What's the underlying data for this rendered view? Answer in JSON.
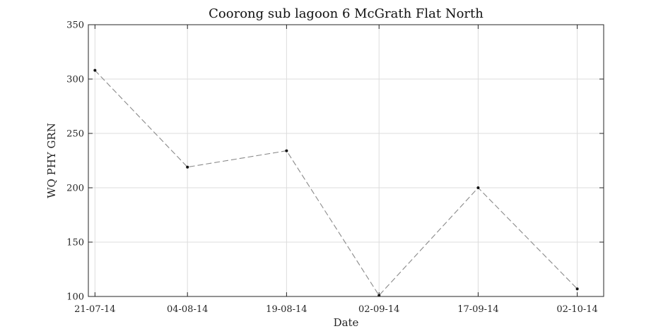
{
  "chart_data": {
    "type": "line",
    "title": "Coorong sub lagoon 6 McGrath Flat North",
    "xlabel": "Date",
    "ylabel": "WQ PHY GRN",
    "x_is_date": true,
    "xlim": [
      "2014-07-20",
      "2014-10-06"
    ],
    "ylim": [
      100,
      350
    ],
    "xticks": [
      {
        "date": "2014-07-21",
        "label": "21-07-14"
      },
      {
        "date": "2014-08-04",
        "label": "04-08-14"
      },
      {
        "date": "2014-08-19",
        "label": "19-08-14"
      },
      {
        "date": "2014-09-02",
        "label": "02-09-14"
      },
      {
        "date": "2014-09-17",
        "label": "17-09-14"
      },
      {
        "date": "2014-10-02",
        "label": "02-10-14"
      }
    ],
    "yticks": [
      100,
      150,
      200,
      250,
      300,
      350
    ],
    "grid": true,
    "series": [
      {
        "color": "#8a8a8a",
        "line_style": "dashed",
        "marker_color": "#111111",
        "points": [
          {
            "x": "2014-07-21",
            "y": 308
          },
          {
            "x": "2014-08-04",
            "y": 219
          },
          {
            "x": "2014-08-19",
            "y": 234
          },
          {
            "x": "2014-09-02",
            "y": 101
          },
          {
            "x": "2014-09-17",
            "y": 200
          },
          {
            "x": "2014-10-02",
            "y": 107
          }
        ]
      }
    ]
  }
}
